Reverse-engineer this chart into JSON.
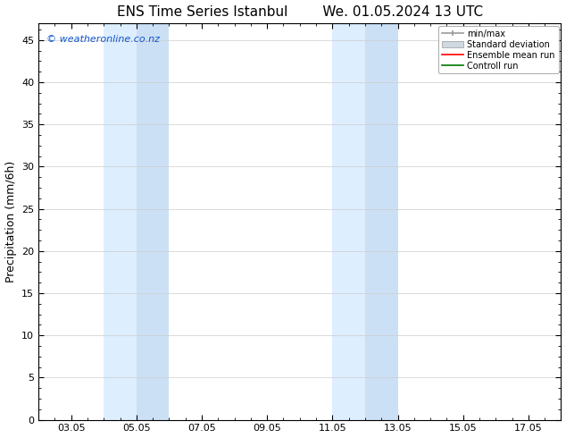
{
  "title_left": "ENS Time Series Istanbul",
  "title_right": "We. 01.05.2024 13 UTC",
  "ylabel": "Precipitation (mm/6h)",
  "ylim": [
    0,
    47
  ],
  "yticks": [
    0,
    5,
    10,
    15,
    20,
    25,
    30,
    35,
    40,
    45
  ],
  "xtick_labels": [
    "03.05",
    "05.05",
    "07.05",
    "09.05",
    "11.05",
    "13.05",
    "15.05",
    "17.05"
  ],
  "xtick_positions": [
    3,
    5,
    7,
    9,
    11,
    13,
    15,
    17
  ],
  "xlim": [
    2,
    18
  ],
  "shaded_regions": [
    {
      "x_start": 4.0,
      "x_end": 5.0,
      "color": "#ddeeff"
    },
    {
      "x_start": 5.0,
      "x_end": 6.0,
      "color": "#cce0f5"
    },
    {
      "x_start": 11.0,
      "x_end": 12.0,
      "color": "#ddeeff"
    },
    {
      "x_start": 12.0,
      "x_end": 13.0,
      "color": "#cce0f5"
    }
  ],
  "copyright_text": "© weatheronline.co.nz",
  "copyright_color": "#1155cc",
  "background_color": "#ffffff",
  "legend_labels": [
    "min/max",
    "Standard deviation",
    "Ensemble mean run",
    "Controll run"
  ],
  "legend_colors_line": [
    "#999999",
    "#bbbbbb",
    "#ff0000",
    "#007700"
  ],
  "title_fontsize": 11,
  "axis_fontsize": 9,
  "tick_fontsize": 8,
  "grid_color": "#cccccc"
}
